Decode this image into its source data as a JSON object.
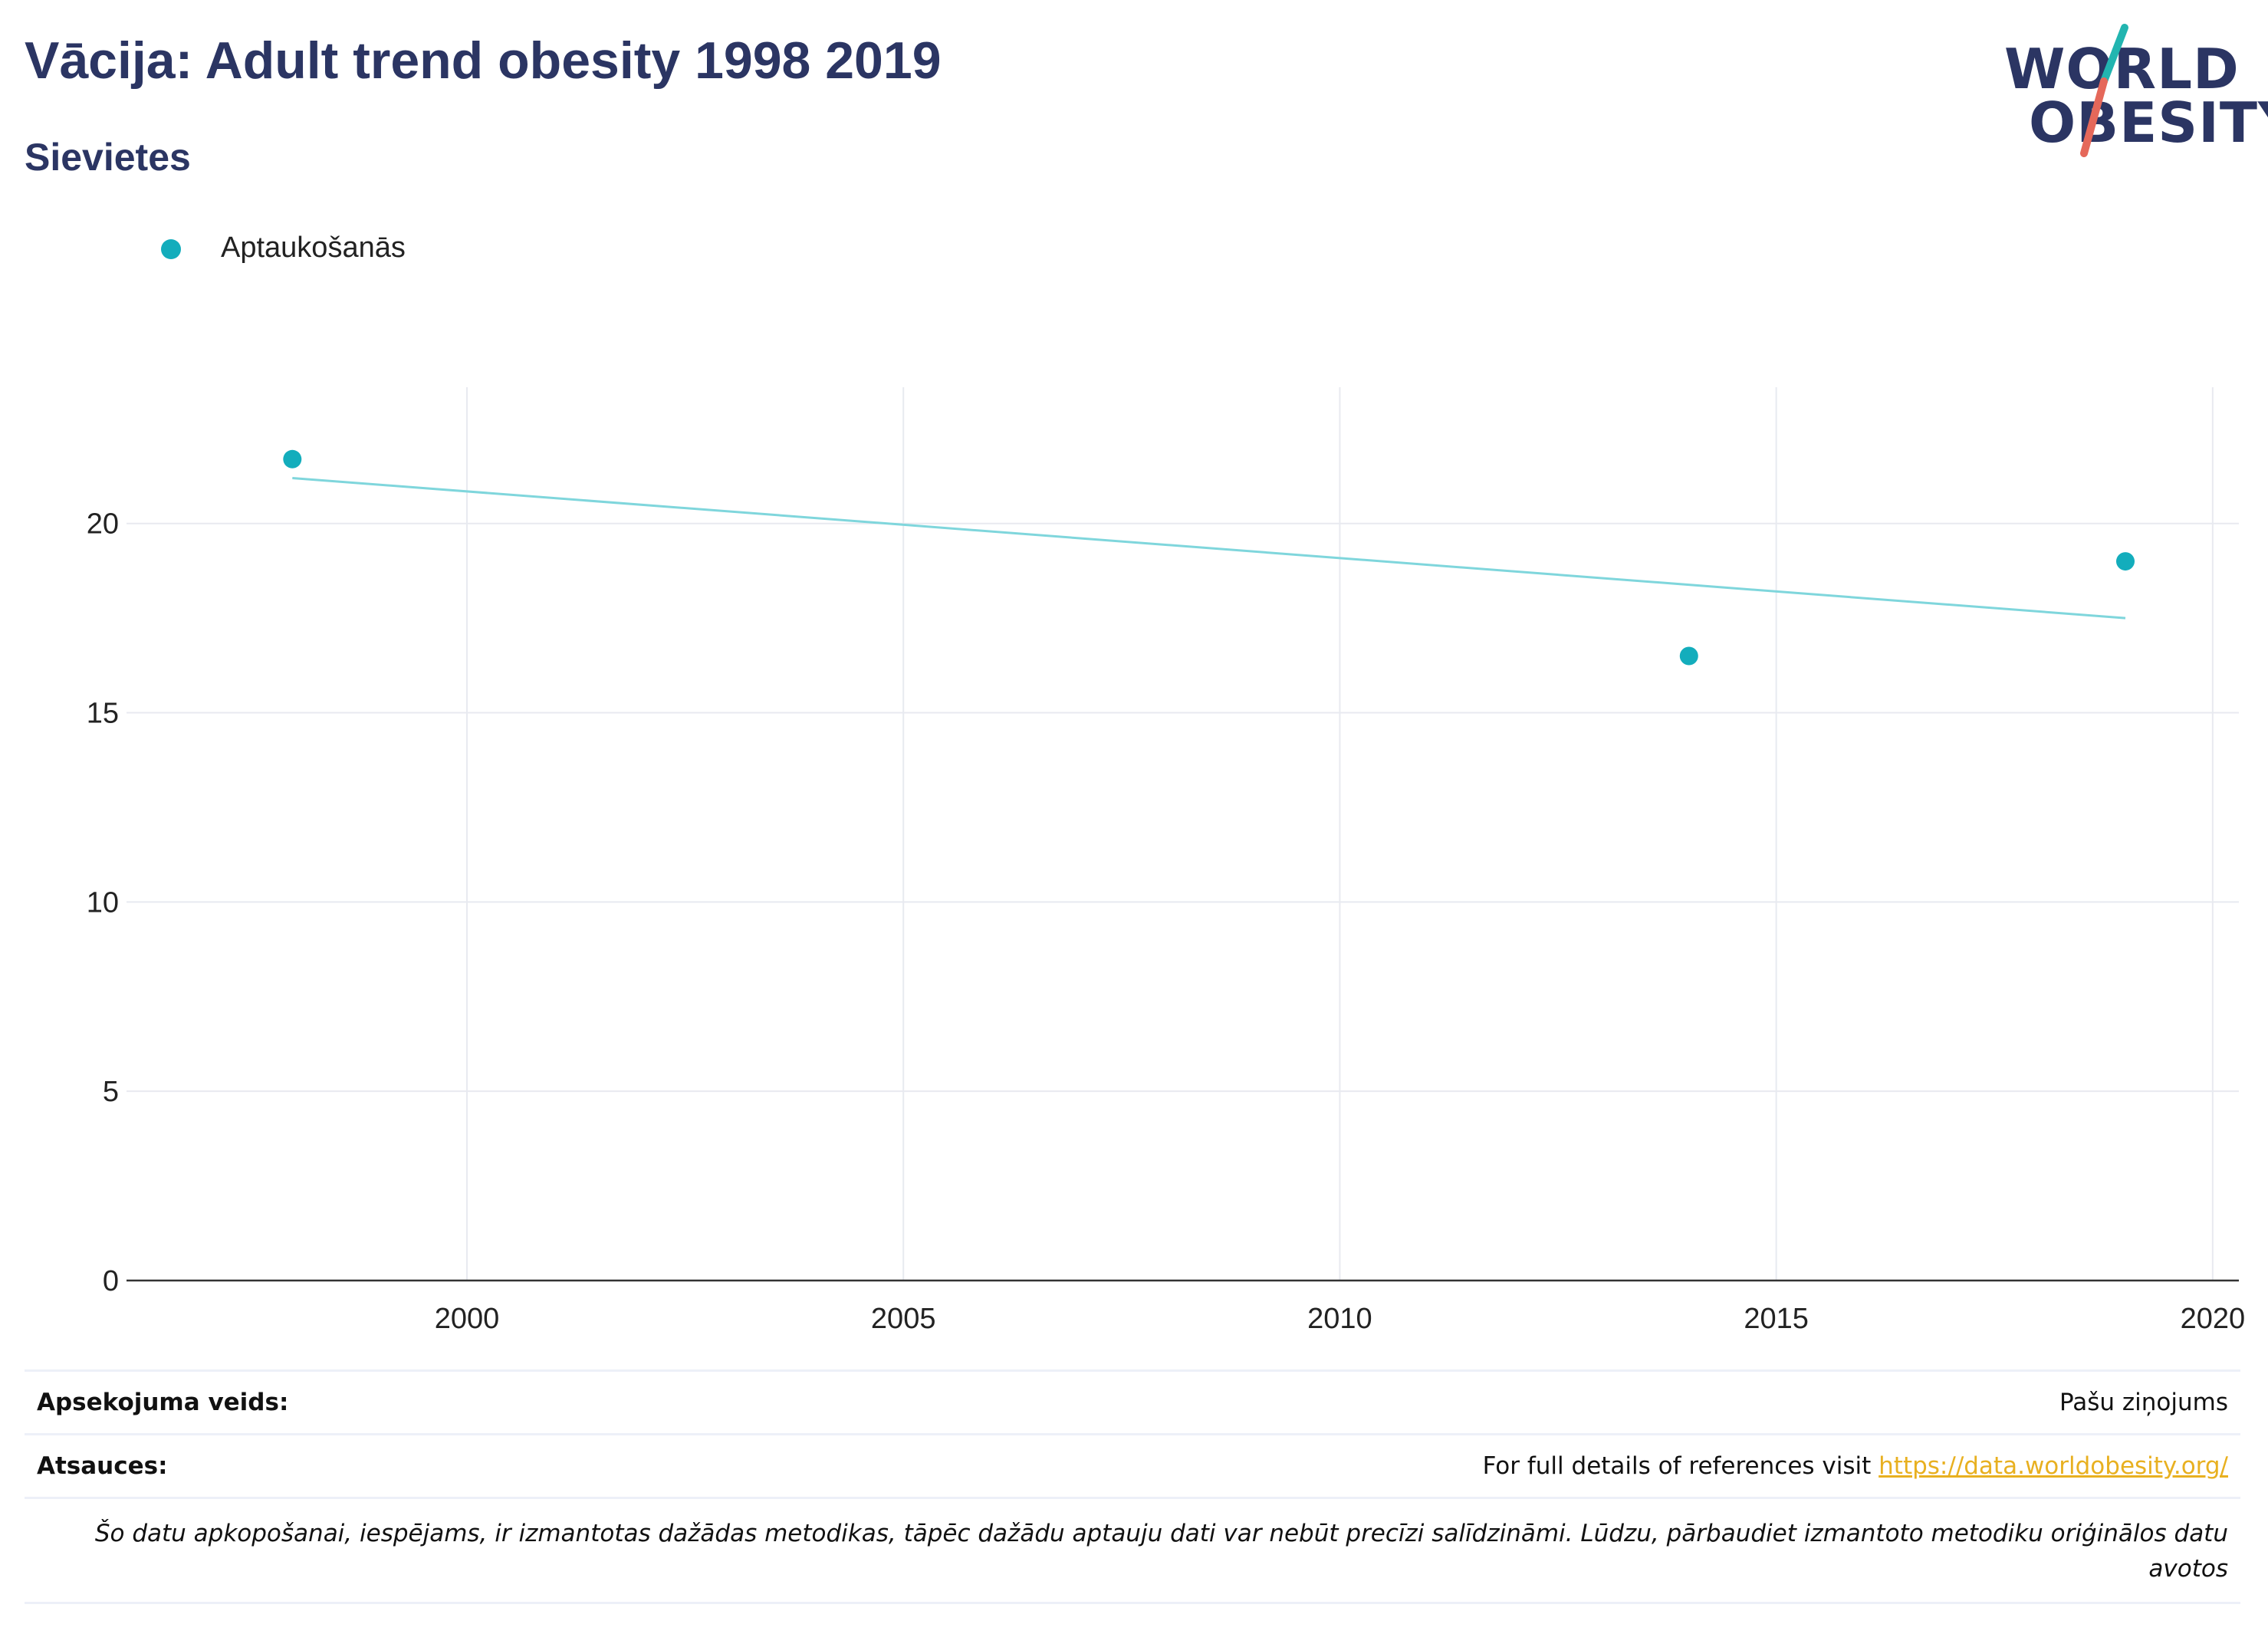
{
  "header": {
    "title": "Vācija: Adult trend obesity 1998 2019",
    "subtitle": "Sievietes"
  },
  "logo": {
    "line1": "WORLD",
    "line2": "OBESITY",
    "accent_teal": "#22b5b0",
    "accent_red": "#e5685a"
  },
  "legend": {
    "label": "Aptaukošanās"
  },
  "chart_data": {
    "type": "scatter",
    "title": "Vācija: Adult trend obesity 1998 2019",
    "subtitle": "Sievietes",
    "xlabel": "",
    "ylabel": "",
    "xlim": [
      1996.1,
      2020.3
    ],
    "ylim": [
      0,
      23.6
    ],
    "x_ticks": [
      2000,
      2005,
      2010,
      2015,
      2020
    ],
    "y_ticks": [
      0,
      5,
      10,
      15,
      20
    ],
    "grid": true,
    "legend_position": "top-left",
    "series": [
      {
        "name": "Aptaukošanās",
        "color": "#13adbc",
        "points": [
          {
            "x": 1998,
            "y": 21.7
          },
          {
            "x": 2014,
            "y": 16.5
          },
          {
            "x": 2019,
            "y": 19.0
          }
        ]
      }
    ],
    "trendline": {
      "color": "#7fd6dc",
      "start": {
        "x": 1998,
        "y": 21.2
      },
      "end": {
        "x": 2019,
        "y": 17.5
      }
    }
  },
  "info": {
    "survey_type_label": "Apsekojuma veids:",
    "survey_type_value": "Pašu ziņojums",
    "references_label": "Atsauces:",
    "references_text": "For full details of references visit ",
    "references_link": "https://data.worldobesity.org/",
    "note": "Šo datu apkopošanai, iespējams, ir izmantotas dažādas metodikas, tāpēc dažādu aptauju dati var nebūt precīzi salīdzināmi. Lūdzu, pārbaudiet izmantoto metodiku oriģinālos datu avotos"
  }
}
